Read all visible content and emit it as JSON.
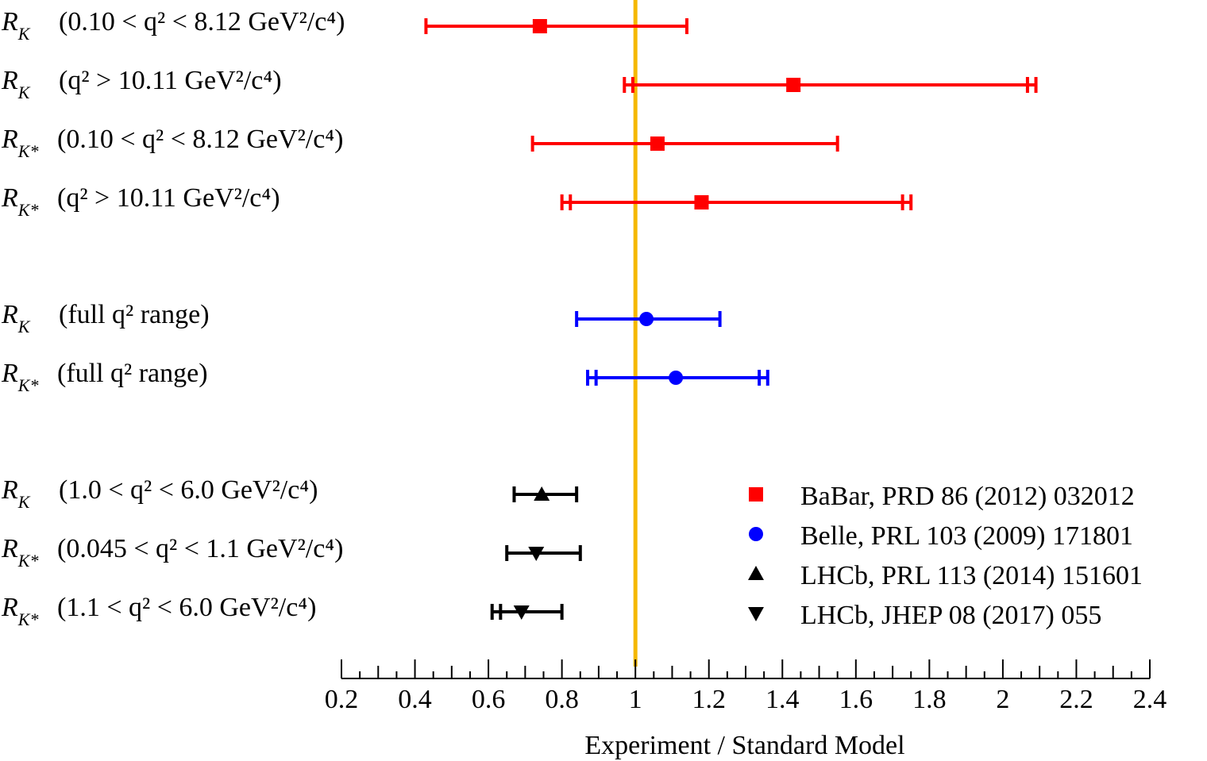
{
  "chart_data": {
    "type": "scatter",
    "title": "",
    "xlabel": "Experiment / Standard Model",
    "ylabel": "",
    "xlim": [
      0.2,
      2.4
    ],
    "x_ticks": [
      "0.2",
      "0.4",
      "0.6",
      "0.8",
      "1",
      "1.2",
      "1.4",
      "1.6",
      "1.8",
      "2",
      "2.2",
      "2.4"
    ],
    "reference_line": {
      "x": 1.0,
      "color": "#f5b800"
    },
    "grid": false,
    "legend_position": "bottom-right",
    "series": [
      {
        "name": "BaBar,  PRD 86 (2012) 032012",
        "marker": "square",
        "color": "#ff0000",
        "points": [
          {
            "sym": "R",
            "sub": "K",
            "range": "(0.10 < q² < 8.12 GeV²/c⁴)",
            "value": 0.74,
            "stat": [
              0.45,
              1.14
            ],
            "total": [
              0.43,
              1.14
            ],
            "double_low": false,
            "double_high": false
          },
          {
            "sym": "R",
            "sub": "K",
            "range": "(q² > 10.11 GeV²/c⁴)",
            "value": 1.43,
            "stat": [
              0.98,
              2.08
            ],
            "total": [
              0.97,
              2.09
            ],
            "double_low": true,
            "double_high": true
          },
          {
            "sym": "R",
            "sub": "K*",
            "range": "(0.10 < q² < 8.12 GeV²/c⁴)",
            "value": 1.06,
            "stat": [
              0.73,
              1.55
            ],
            "total": [
              0.72,
              1.55
            ],
            "double_low": false,
            "double_high": false
          },
          {
            "sym": "R",
            "sub": "K*",
            "range": "(q² > 10.11 GeV²/c⁴)",
            "value": 1.18,
            "stat": [
              0.81,
              1.74
            ],
            "total": [
              0.8,
              1.75
            ],
            "double_low": true,
            "double_high": true
          }
        ]
      },
      {
        "name": "Belle, PRL 103 (2009) 171801",
        "marker": "circle",
        "color": "#0000ff",
        "points": [
          {
            "sym": "R",
            "sub": "K",
            "range": "(full q² range)",
            "value": 1.03,
            "stat": [
              0.84,
              1.23
            ],
            "total": [
              0.84,
              1.23
            ],
            "double_low": false,
            "double_high": false
          },
          {
            "sym": "R",
            "sub": "K*",
            "range": "(full q² range)",
            "value": 1.11,
            "stat": [
              0.88,
              1.35
            ],
            "total": [
              0.87,
              1.36
            ],
            "double_low": true,
            "double_high": true
          }
        ]
      },
      {
        "name": "LHCb, PRL 113 (2014) 151601",
        "marker": "triangle-up",
        "color": "#000000",
        "points": [
          {
            "sym": "R",
            "sub": "K",
            "range": "(1.0 < q² < 6.0 GeV²/c⁴)",
            "value": 0.745,
            "stat": [
              0.67,
              0.84
            ],
            "total": [
              0.67,
              0.84
            ],
            "double_low": false,
            "double_high": false
          }
        ]
      },
      {
        "name": "LHCb, JHEP 08 (2017) 055",
        "marker": "triangle-down",
        "color": "#000000",
        "points": [
          {
            "sym": "R",
            "sub": "K*",
            "range": "(0.045 < q² < 1.1 GeV²/c⁴)",
            "value": 0.73,
            "stat": [
              0.65,
              0.85
            ],
            "total": [
              0.65,
              0.85
            ],
            "double_low": false,
            "double_high": false
          },
          {
            "sym": "R",
            "sub": "K*",
            "range": "(1.1 < q² < 6.0 GeV²/c⁴)",
            "value": 0.69,
            "stat": [
              0.62,
              0.8
            ],
            "total": [
              0.61,
              0.8
            ],
            "double_low": true,
            "double_high": false
          }
        ]
      }
    ]
  }
}
